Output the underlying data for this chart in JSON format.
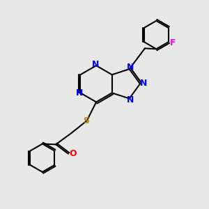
{
  "background_color": "#e8e8e8",
  "bond_color": "#000000",
  "bond_width": 1.5,
  "figsize": [
    3.0,
    3.0
  ],
  "dpi": 100,
  "atom_labels": [
    {
      "text": "N",
      "color": "#0000FF",
      "fontsize": 9
    },
    {
      "text": "S",
      "color": "#B8860B",
      "fontsize": 9
    },
    {
      "text": "O",
      "color": "#FF0000",
      "fontsize": 9
    },
    {
      "text": "F",
      "color": "#FF00FF",
      "fontsize": 9
    }
  ]
}
